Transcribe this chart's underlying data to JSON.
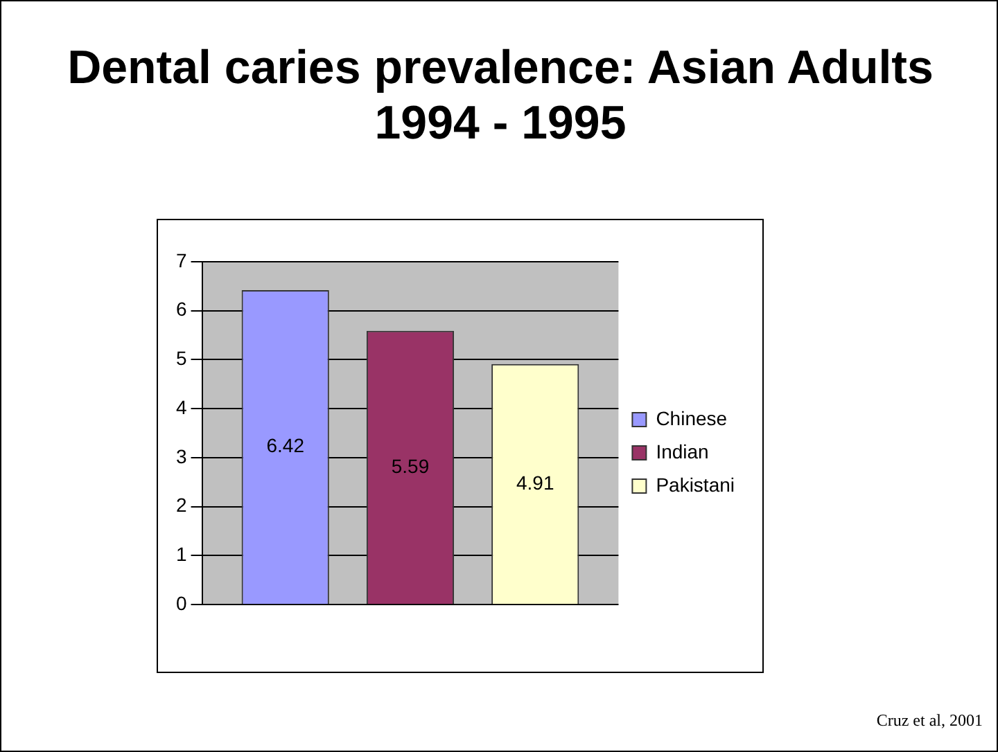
{
  "chart_data": {
    "type": "bar",
    "title": "Dental caries prevalence: Asian Adults 1994 - 1995",
    "categories": [
      null
    ],
    "series": [
      {
        "name": "Chinese",
        "color": "#9999ff",
        "values": [
          6.42
        ]
      },
      {
        "name": "Indian",
        "color": "#993366",
        "values": [
          5.59
        ]
      },
      {
        "name": "Pakistani",
        "color": "#ffffcc",
        "values": [
          4.91
        ]
      }
    ],
    "ylim": [
      0,
      7
    ],
    "yticks": [
      0,
      1,
      2,
      3,
      4,
      5,
      6,
      7
    ],
    "grid": "y",
    "legend": "right",
    "data_labels": true,
    "annotations": [
      "Cruz et al, 2001"
    ]
  }
}
